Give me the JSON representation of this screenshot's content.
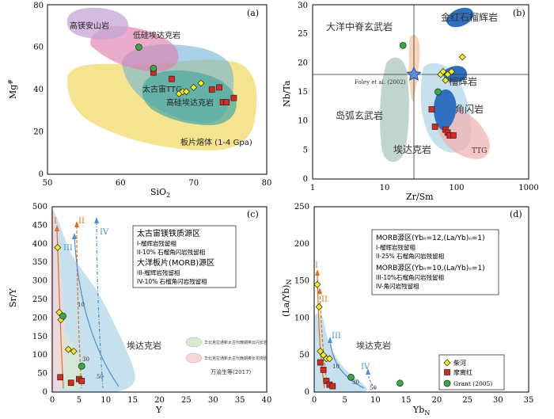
{
  "figure": "four-panel geochemical discrimination diagrams",
  "chart_data": [
    {
      "panel": "(a)",
      "type": "scatter",
      "xlabel_main": "SiO",
      "xlabel_sub": "2",
      "ylabel_main": "Mg",
      "ylabel_sup": "#",
      "xlim": [
        50,
        80
      ],
      "ylim": [
        0,
        80
      ],
      "xticks": [
        "50",
        "60",
        "70",
        "80"
      ],
      "yticks": [
        "0",
        "20",
        "40",
        "60",
        "80"
      ],
      "fields": [
        {
          "name": "slab_melt",
          "label": "板片熔体 (1-4 Gpa)",
          "color": "#f0d96a"
        },
        {
          "name": "archean_ttg",
          "label": "太古宙TTG",
          "color": "#6fb3d9"
        },
        {
          "name": "high_si_adakite",
          "label": "高硅埃达克岩",
          "color": "#4aa8a0"
        },
        {
          "name": "low_si_adakite",
          "label": "低硅埃达克岩",
          "color": "#e07fb0"
        },
        {
          "name": "high_mg_andesite",
          "label": "高镁安山岩",
          "color": "#c6a6d6"
        }
      ],
      "series": [
        {
          "name": "red_squares",
          "x": [
            64.5,
            67,
            72.5,
            73.5,
            74,
            74.5,
            75.5
          ],
          "y": [
            48,
            45,
            40,
            41,
            34,
            34,
            36
          ]
        },
        {
          "name": "yellow_diamonds",
          "x": [
            68,
            68.5,
            69,
            70,
            71
          ],
          "y": [
            38,
            39,
            39,
            41,
            43
          ]
        },
        {
          "name": "green_circles",
          "x": [
            62.5,
            64.5
          ],
          "y": [
            60,
            50
          ]
        }
      ]
    },
    {
      "panel": "(b)",
      "type": "scatter",
      "xlabel": "Zr/Sm",
      "ylabel": "Nb/Ta",
      "xscale": "log",
      "xlim": [
        1,
        1000
      ],
      "ylim": [
        0,
        30
      ],
      "xticks": [
        "1",
        "10",
        "100",
        "1000"
      ],
      "yticks": [
        "0",
        "5",
        "10",
        "15",
        "20",
        "25",
        "30"
      ],
      "reference_lines": {
        "x": 27,
        "y": 17.5
      },
      "reference_point": {
        "label": "Foley et al. (2002)",
        "x": 27,
        "y": 17.5
      },
      "fields": [
        {
          "label": "大洋中脊玄武岩"
        },
        {
          "label": "金红石榴辉岩"
        },
        {
          "label": "榴辉岩"
        },
        {
          "label": "角闪岩"
        },
        {
          "label": "岛弧玄武岩"
        },
        {
          "label": "埃达克岩"
        },
        {
          "label": "TTG"
        }
      ],
      "series": [
        {
          "name": "yellow_diamonds",
          "x": [
            60,
            65,
            70,
            75,
            85,
            120
          ],
          "y": [
            18,
            18.5,
            17,
            18,
            18.5,
            21
          ]
        },
        {
          "name": "red_squares",
          "x": [
            45,
            50,
            70,
            75,
            80,
            90
          ],
          "y": [
            12,
            9,
            8.5,
            8,
            7.5,
            7.5
          ]
        },
        {
          "name": "green_circles",
          "x": [
            18,
            55
          ],
          "y": [
            23,
            15
          ]
        }
      ]
    },
    {
      "panel": "(c)",
      "type": "scatter",
      "xlabel": "Y",
      "ylabel": "Sr/Y",
      "xlim": [
        0,
        40
      ],
      "ylim": [
        0,
        500
      ],
      "xticks": [
        "0",
        "5",
        "10",
        "15",
        "20",
        "25",
        "30",
        "35",
        "40"
      ],
      "yticks": [
        "0",
        "50",
        "100",
        "150",
        "200",
        "250",
        "300",
        "350",
        "400",
        "450",
        "500"
      ],
      "legend_title_1": "太古宙镁铁质源区",
      "legend_items_1": [
        "I-榴辉岩残留相",
        "II-10% 石榴角闪岩残留相"
      ],
      "legend_title_2": "大洋板片(MORB)源区",
      "legend_items_2": [
        "III-榴辉岩残留相",
        "IV-10% 石榴角闪岩残留相"
      ],
      "field_label": "埃达克岩",
      "legend_fields": [
        {
          "label": "华北克拉通新太古代晚期英云闪长岩",
          "color": "#d8e8cf"
        },
        {
          "label": "华北克拉通新太古代晚期奥长花岗岩",
          "color": "#f6d4d8"
        }
      ],
      "source": "万渝生等(2017)",
      "curve_labels": [
        "I",
        "II",
        "III",
        "IV"
      ],
      "melt_labels": [
        "10",
        "30",
        "50"
      ],
      "series": [
        {
          "name": "yellow_diamonds",
          "x": [
            1,
            1.3,
            1.6,
            3,
            4
          ],
          "y": [
            390,
            215,
            195,
            115,
            110
          ]
        },
        {
          "name": "red_squares",
          "x": [
            1.5,
            3.5,
            5,
            5.5
          ],
          "y": [
            40,
            25,
            35,
            30
          ]
        },
        {
          "name": "green_circles",
          "x": [
            2,
            5.5
          ],
          "y": [
            205,
            70
          ]
        }
      ]
    },
    {
      "panel": "(d)",
      "type": "scatter",
      "xlabel_main": "Yb",
      "xlabel_sub": "N",
      "ylabel_main": "(La/Yb)",
      "ylabel_sub": "N",
      "xlim": [
        0,
        35
      ],
      "ylim": [
        0,
        250
      ],
      "xticks": [
        "0",
        "5",
        "10",
        "15",
        "20",
        "25",
        "30",
        "35"
      ],
      "yticks": [
        "0",
        "50",
        "100",
        "150",
        "200",
        "250"
      ],
      "legend_title_1": "MORB源区(Ybₙ=12,(La/Yb)ₙ=1)",
      "legend_items_1": [
        "I-榴辉岩残留相",
        "II-25% 石榴角闪岩残留相"
      ],
      "legend_title_2": "MORB源区(Ybₙ=10,(La/Yb)ₙ=1)",
      "legend_items_2": [
        "III-10%石榴角闪岩残留相",
        "IV-角闪岩残留相"
      ],
      "field_label": "埃达克岩",
      "curve_labels": [
        "I",
        "II",
        "III",
        "IV"
      ],
      "melt_labels": [
        "10",
        "30",
        "50"
      ],
      "legend": [
        {
          "marker": "diamond",
          "label": "柴河",
          "color": "#f7f01c"
        },
        {
          "marker": "square",
          "label": "摩离红",
          "color": "#d9291c"
        },
        {
          "marker": "circle",
          "label": "Grant (2005)",
          "color": "#3aa845"
        }
      ],
      "series": [
        {
          "name": "yellow_diamonds",
          "x": [
            0.5,
            0.8,
            1,
            1.5,
            2,
            2.5
          ],
          "y": [
            145,
            115,
            55,
            50,
            45,
            45
          ]
        },
        {
          "name": "red_squares",
          "x": [
            1,
            1.5,
            2,
            2.5,
            3
          ],
          "y": [
            40,
            30,
            15,
            10,
            8
          ]
        },
        {
          "name": "green_circles",
          "x": [
            6,
            14
          ],
          "y": [
            20,
            12
          ]
        }
      ]
    }
  ],
  "colors": {
    "diamond": "#f7f01c",
    "square": "#d9291c",
    "circle": "#3aa845",
    "edge": "#222222"
  }
}
